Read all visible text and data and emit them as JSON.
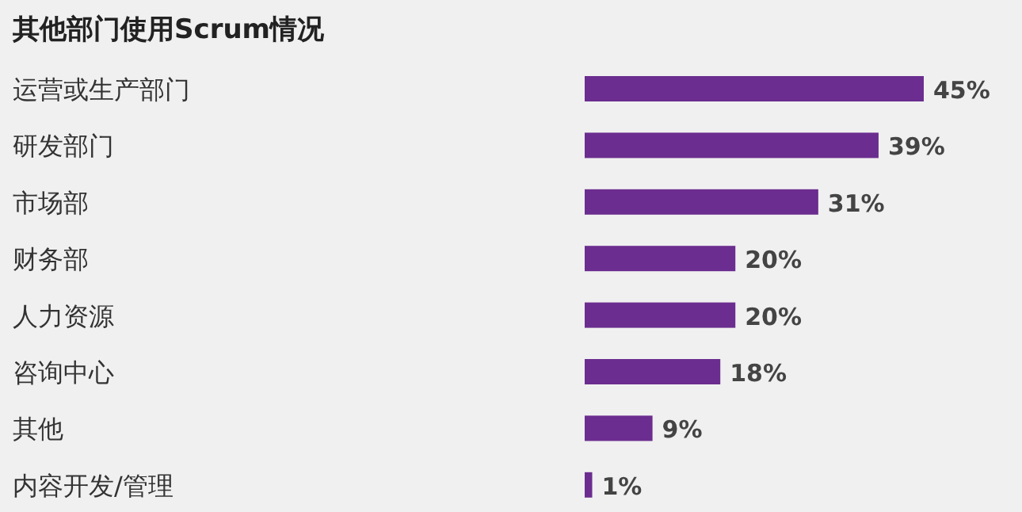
{
  "chart_data": {
    "type": "bar",
    "orientation": "horizontal",
    "title": "其他部门使用Scrum情况",
    "categories": [
      "运营或生产部门",
      "研发部门",
      "市场部",
      "财务部",
      "人力资源",
      "咨询中心",
      "其他",
      "内容开发/管理"
    ],
    "values": [
      45,
      39,
      31,
      20,
      20,
      18,
      9,
      1
    ],
    "value_labels": [
      "45%",
      "39%",
      "31%",
      "20%",
      "20%",
      "18%",
      "9%",
      "1%"
    ],
    "color": "#6b2d8f"
  }
}
